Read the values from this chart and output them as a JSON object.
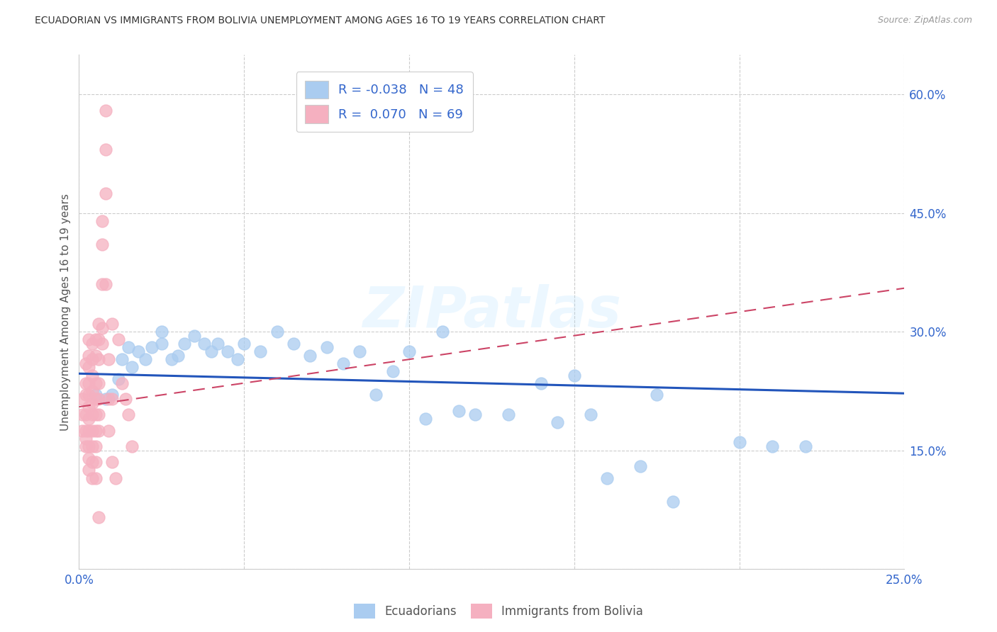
{
  "title": "ECUADORIAN VS IMMIGRANTS FROM BOLIVIA UNEMPLOYMENT AMONG AGES 16 TO 19 YEARS CORRELATION CHART",
  "source": "Source: ZipAtlas.com",
  "ylabel": "Unemployment Among Ages 16 to 19 years",
  "xlim": [
    0.0,
    0.25
  ],
  "ylim": [
    0.0,
    0.65
  ],
  "R_blue": -0.038,
  "N_blue": 48,
  "R_pink": 0.07,
  "N_pink": 69,
  "blue_color": "#aaccf0",
  "pink_color": "#f5b0c0",
  "blue_line_color": "#2255bb",
  "pink_line_color": "#cc4466",
  "blue_scatter": [
    [
      0.005,
      0.22
    ],
    [
      0.008,
      0.215
    ],
    [
      0.01,
      0.22
    ],
    [
      0.012,
      0.24
    ],
    [
      0.013,
      0.265
    ],
    [
      0.015,
      0.28
    ],
    [
      0.016,
      0.255
    ],
    [
      0.018,
      0.275
    ],
    [
      0.02,
      0.265
    ],
    [
      0.022,
      0.28
    ],
    [
      0.025,
      0.3
    ],
    [
      0.025,
      0.285
    ],
    [
      0.028,
      0.265
    ],
    [
      0.03,
      0.27
    ],
    [
      0.032,
      0.285
    ],
    [
      0.035,
      0.295
    ],
    [
      0.038,
      0.285
    ],
    [
      0.04,
      0.275
    ],
    [
      0.042,
      0.285
    ],
    [
      0.045,
      0.275
    ],
    [
      0.048,
      0.265
    ],
    [
      0.05,
      0.285
    ],
    [
      0.055,
      0.275
    ],
    [
      0.06,
      0.3
    ],
    [
      0.065,
      0.285
    ],
    [
      0.07,
      0.27
    ],
    [
      0.075,
      0.28
    ],
    [
      0.08,
      0.26
    ],
    [
      0.085,
      0.275
    ],
    [
      0.09,
      0.22
    ],
    [
      0.095,
      0.25
    ],
    [
      0.1,
      0.275
    ],
    [
      0.105,
      0.19
    ],
    [
      0.11,
      0.3
    ],
    [
      0.115,
      0.2
    ],
    [
      0.12,
      0.195
    ],
    [
      0.13,
      0.195
    ],
    [
      0.14,
      0.235
    ],
    [
      0.145,
      0.185
    ],
    [
      0.15,
      0.245
    ],
    [
      0.155,
      0.195
    ],
    [
      0.16,
      0.115
    ],
    [
      0.17,
      0.13
    ],
    [
      0.175,
      0.22
    ],
    [
      0.18,
      0.085
    ],
    [
      0.2,
      0.16
    ],
    [
      0.21,
      0.155
    ],
    [
      0.22,
      0.155
    ]
  ],
  "pink_scatter": [
    [
      0.001,
      0.215
    ],
    [
      0.001,
      0.195
    ],
    [
      0.001,
      0.175
    ],
    [
      0.002,
      0.26
    ],
    [
      0.002,
      0.235
    ],
    [
      0.002,
      0.22
    ],
    [
      0.002,
      0.195
    ],
    [
      0.002,
      0.175
    ],
    [
      0.002,
      0.165
    ],
    [
      0.002,
      0.155
    ],
    [
      0.003,
      0.29
    ],
    [
      0.003,
      0.27
    ],
    [
      0.003,
      0.255
    ],
    [
      0.003,
      0.235
    ],
    [
      0.003,
      0.22
    ],
    [
      0.003,
      0.205
    ],
    [
      0.003,
      0.19
    ],
    [
      0.003,
      0.175
    ],
    [
      0.003,
      0.155
    ],
    [
      0.003,
      0.14
    ],
    [
      0.003,
      0.125
    ],
    [
      0.004,
      0.285
    ],
    [
      0.004,
      0.265
    ],
    [
      0.004,
      0.245
    ],
    [
      0.004,
      0.225
    ],
    [
      0.004,
      0.21
    ],
    [
      0.004,
      0.195
    ],
    [
      0.004,
      0.175
    ],
    [
      0.004,
      0.155
    ],
    [
      0.004,
      0.135
    ],
    [
      0.004,
      0.115
    ],
    [
      0.005,
      0.29
    ],
    [
      0.005,
      0.27
    ],
    [
      0.005,
      0.235
    ],
    [
      0.005,
      0.215
    ],
    [
      0.005,
      0.195
    ],
    [
      0.005,
      0.175
    ],
    [
      0.005,
      0.155
    ],
    [
      0.005,
      0.135
    ],
    [
      0.005,
      0.115
    ],
    [
      0.006,
      0.31
    ],
    [
      0.006,
      0.29
    ],
    [
      0.006,
      0.265
    ],
    [
      0.006,
      0.235
    ],
    [
      0.006,
      0.215
    ],
    [
      0.006,
      0.195
    ],
    [
      0.006,
      0.175
    ],
    [
      0.006,
      0.065
    ],
    [
      0.007,
      0.44
    ],
    [
      0.007,
      0.41
    ],
    [
      0.007,
      0.36
    ],
    [
      0.007,
      0.305
    ],
    [
      0.007,
      0.285
    ],
    [
      0.008,
      0.58
    ],
    [
      0.008,
      0.53
    ],
    [
      0.008,
      0.475
    ],
    [
      0.008,
      0.36
    ],
    [
      0.009,
      0.265
    ],
    [
      0.009,
      0.215
    ],
    [
      0.009,
      0.175
    ],
    [
      0.01,
      0.31
    ],
    [
      0.01,
      0.215
    ],
    [
      0.01,
      0.135
    ],
    [
      0.011,
      0.115
    ],
    [
      0.012,
      0.29
    ],
    [
      0.013,
      0.235
    ],
    [
      0.014,
      0.215
    ],
    [
      0.015,
      0.195
    ],
    [
      0.016,
      0.155
    ]
  ]
}
